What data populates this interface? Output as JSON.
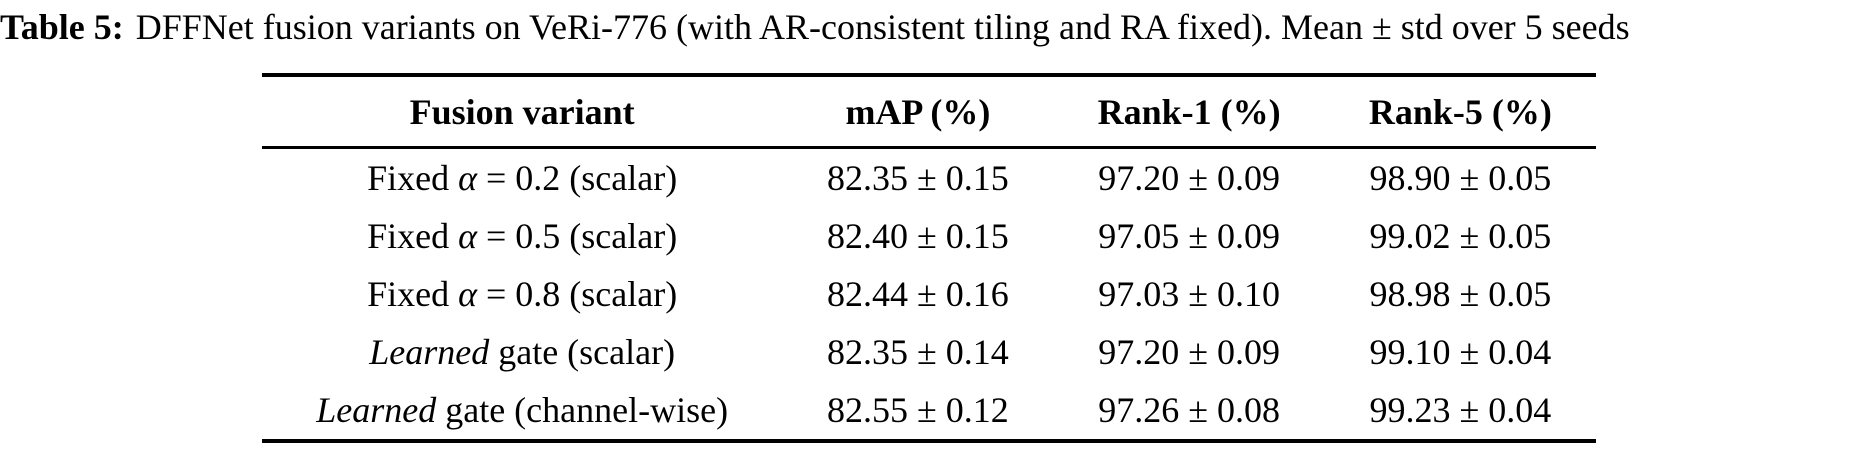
{
  "caption": {
    "label": "Table 5:",
    "text": "DFFNet fusion variants on VeRi-776 (with AR-consistent tiling and RA fixed). Mean ± std over 5 seeds"
  },
  "table": {
    "headers": [
      "Fusion variant",
      "mAP (%)",
      "Rank-1 (%)",
      "Rank-5 (%)"
    ],
    "rows": [
      {
        "variant": [
          {
            "t": "Fixed ",
            "i": false
          },
          {
            "t": "α",
            "i": true
          },
          {
            "t": " = 0.2 (scalar)",
            "i": false
          }
        ],
        "map": "82.35 ± 0.15",
        "rank1": "97.20 ± 0.09",
        "rank5": "98.90 ± 0.05"
      },
      {
        "variant": [
          {
            "t": "Fixed ",
            "i": false
          },
          {
            "t": "α",
            "i": true
          },
          {
            "t": " = 0.5 (scalar)",
            "i": false
          }
        ],
        "map": "82.40 ± 0.15",
        "rank1": "97.05 ± 0.09",
        "rank5": "99.02 ± 0.05"
      },
      {
        "variant": [
          {
            "t": "Fixed ",
            "i": false
          },
          {
            "t": "α",
            "i": true
          },
          {
            "t": " = 0.8 (scalar)",
            "i": false
          }
        ],
        "map": "82.44 ± 0.16",
        "rank1": "97.03 ± 0.10",
        "rank5": "98.98 ± 0.05"
      },
      {
        "variant": [
          {
            "t": "Learned",
            "i": true
          },
          {
            "t": " gate (scalar)",
            "i": false
          }
        ],
        "map": "82.35 ± 0.14",
        "rank1": "97.20 ± 0.09",
        "rank5": "99.10 ± 0.04"
      },
      {
        "variant": [
          {
            "t": "Learned",
            "i": true
          },
          {
            "t": " gate (channel-wise)",
            "i": false
          }
        ],
        "map": "82.55 ± 0.12",
        "rank1": "97.26 ± 0.08",
        "rank5": "99.23 ± 0.04"
      }
    ]
  }
}
